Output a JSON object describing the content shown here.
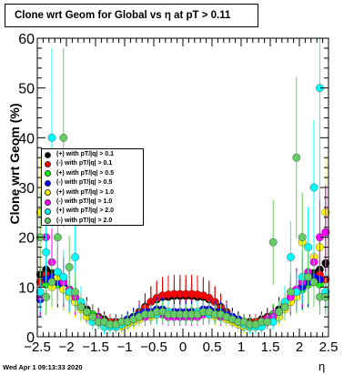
{
  "title": "Clone wrt Geom for Global vs   η at pT > 0.11",
  "footer": "Wed Apr  1 09:13:33 2020",
  "colors": {
    "pos_pt01": "#000000",
    "neg_pt01": "#ff0000",
    "pos_pt05": "#00ff00",
    "neg_pt05": "#0000ff",
    "pos_pt10": "#ffff00",
    "neg_pt10": "#ff00ff",
    "pos_pt20": "#00ffff",
    "neg_pt20": "#66cc66"
  },
  "legend": [
    {
      "label": "(+) with pT/|q| > 0.1",
      "color": "#000000"
    },
    {
      "label": "(-) with pT/|q| > 0.1",
      "color": "#ff0000"
    },
    {
      "label": "(+) with pT/|q| > 0.5",
      "color": "#00ff00"
    },
    {
      "label": "(-) with pT/|q| > 0.5",
      "color": "#0000ff"
    },
    {
      "label": "(+) with pT/|q| > 1.0",
      "color": "#ffff00"
    },
    {
      "label": "(-) with pT/|q| > 1.0",
      "color": "#ff00ff"
    },
    {
      "label": "(+) with pT/|q| > 2.0",
      "color": "#00ffff"
    },
    {
      "label": "(-) with pT/|q| > 2.0",
      "color": "#66cc66"
    }
  ],
  "chart_data": {
    "type": "scatter",
    "title": "Clone wrt Geom for Global vs   η at pT > 0.11",
    "xlabel": "η",
    "ylabel": "Clone wrt Geom (%)",
    "xlim": [
      -2.5,
      2.5
    ],
    "ylim": [
      0,
      60
    ],
    "x_ticks": [
      "−2.5",
      "−2",
      "−1.5",
      "−1",
      "−0.5",
      "0",
      "0.5",
      "1",
      "1.5",
      "2",
      "2.5"
    ],
    "y_ticks": [
      "0",
      "10",
      "20",
      "30",
      "40",
      "50",
      "60"
    ],
    "grid": false,
    "legend_position": "middle-left",
    "series": [
      {
        "name": "(+) with pT/|q| > 0.1",
        "color": "#000000",
        "x": [
          -2.45,
          -2.35,
          -2.25,
          -2.15,
          -2.05,
          -1.95,
          -1.85,
          -1.75,
          -1.65,
          -1.55,
          -1.45,
          -1.35,
          -1.25,
          -1.15,
          -1.05,
          -0.95,
          -0.85,
          -0.75,
          -0.65,
          -0.55,
          -0.45,
          -0.35,
          -0.25,
          -0.15,
          -0.05,
          0.05,
          0.15,
          0.25,
          0.35,
          0.45,
          0.55,
          0.65,
          0.75,
          0.85,
          0.95,
          1.05,
          1.15,
          1.25,
          1.35,
          1.45,
          1.55,
          1.65,
          1.75,
          1.85,
          1.95,
          2.05,
          2.15,
          2.25,
          2.35,
          2.45
        ],
        "y": [
          12.5,
          13.5,
          12.8,
          12.2,
          11.0,
          9.5,
          8.0,
          6.5,
          5.5,
          4.5,
          4.0,
          3.5,
          3.0,
          3.0,
          3.0,
          3.5,
          4.0,
          5.0,
          6.0,
          7.0,
          7.5,
          8.0,
          8.0,
          8.2,
          8.2,
          8.2,
          8.2,
          8.0,
          8.0,
          7.5,
          7.0,
          6.0,
          5.0,
          4.0,
          3.5,
          3.0,
          3.0,
          3.0,
          3.5,
          4.0,
          4.5,
          5.5,
          6.5,
          8.0,
          9.5,
          11.0,
          12.2,
          12.8,
          13.5,
          14.8
        ]
      },
      {
        "name": "(-) with pT/|q| > 0.1",
        "color": "#ff0000",
        "x": [
          -2.45,
          -2.35,
          -2.25,
          -2.15,
          -2.05,
          -1.95,
          -1.85,
          -1.75,
          -1.65,
          -1.55,
          -1.45,
          -1.35,
          -1.25,
          -1.15,
          -1.05,
          -0.95,
          -0.85,
          -0.75,
          -0.65,
          -0.55,
          -0.45,
          -0.35,
          -0.25,
          -0.15,
          -0.05,
          0.05,
          0.15,
          0.25,
          0.35,
          0.45,
          0.55,
          0.65,
          0.75,
          0.85,
          0.95,
          1.05,
          1.15,
          1.25,
          1.35,
          1.45,
          1.55,
          1.65,
          1.75,
          1.85,
          1.95,
          2.05,
          2.15,
          2.25,
          2.35,
          2.45
        ],
        "y": [
          11.0,
          12.5,
          12.0,
          11.5,
          10.5,
          9.0,
          7.5,
          6.0,
          5.0,
          4.5,
          3.8,
          3.2,
          3.0,
          2.8,
          3.0,
          3.2,
          3.8,
          4.8,
          5.8,
          7.0,
          7.8,
          8.3,
          8.5,
          8.6,
          8.6,
          8.6,
          8.6,
          8.5,
          8.3,
          7.8,
          7.0,
          5.8,
          4.8,
          3.8,
          3.2,
          3.0,
          2.8,
          3.0,
          3.2,
          3.8,
          4.5,
          5.0,
          6.0,
          7.5,
          9.0,
          10.5,
          11.5,
          12.0,
          12.5,
          11.5
        ]
      },
      {
        "name": "(+) with pT/|q| > 0.5",
        "color": "#00ff00",
        "x": [
          -2.45,
          -2.35,
          -2.25,
          -2.15,
          -2.05,
          -1.95,
          -1.85,
          -1.75,
          -1.65,
          -1.55,
          -1.45,
          -1.35,
          -1.25,
          -1.15,
          -1.05,
          -0.95,
          -0.85,
          -0.75,
          -0.65,
          -0.55,
          -0.45,
          -0.35,
          -0.25,
          -0.15,
          -0.05,
          0.05,
          0.15,
          0.25,
          0.35,
          0.45,
          0.55,
          0.65,
          0.75,
          0.85,
          0.95,
          1.05,
          1.15,
          1.25,
          1.35,
          1.45,
          1.55,
          1.65,
          1.75,
          1.85,
          1.95,
          2.05,
          2.15,
          2.25,
          2.35,
          2.45
        ],
        "y": [
          8.0,
          10.5,
          11.0,
          10.5,
          9.5,
          8.5,
          7.0,
          6.0,
          5.0,
          4.5,
          3.5,
          3.0,
          2.5,
          2.5,
          3.0,
          3.5,
          3.5,
          4.0,
          4.5,
          5.0,
          5.0,
          5.0,
          5.0,
          5.0,
          4.5,
          4.5,
          5.0,
          5.0,
          5.0,
          5.0,
          5.0,
          4.5,
          4.0,
          3.5,
          3.5,
          3.0,
          2.5,
          2.5,
          3.0,
          3.5,
          4.5,
          5.0,
          6.0,
          7.0,
          8.5,
          9.5,
          10.5,
          11.0,
          10.5,
          9.0
        ]
      },
      {
        "name": "(-) with pT/|q| > 0.5",
        "color": "#0000ff",
        "x": [
          -2.45,
          -2.35,
          -2.25,
          -2.15,
          -2.05,
          -1.95,
          -1.85,
          -1.75,
          -1.65,
          -1.55,
          -1.45,
          -1.35,
          -1.25,
          -1.15,
          -1.05,
          -0.95,
          -0.85,
          -0.75,
          -0.65,
          -0.55,
          -0.45,
          -0.35,
          -0.25,
          -0.15,
          -0.05,
          0.05,
          0.15,
          0.25,
          0.35,
          0.45,
          0.55,
          0.65,
          0.75,
          0.85,
          0.95,
          1.05,
          1.15,
          1.25,
          1.35,
          1.45,
          1.55,
          1.65,
          1.75,
          1.85,
          1.95,
          2.05,
          2.15,
          2.25,
          2.35,
          2.45
        ],
        "y": [
          7.5,
          11.5,
          12.0,
          11.0,
          10.0,
          9.0,
          7.5,
          6.0,
          5.0,
          4.0,
          3.5,
          3.0,
          2.5,
          2.5,
          3.0,
          3.5,
          4.0,
          4.5,
          5.0,
          5.0,
          5.5,
          5.5,
          5.0,
          5.0,
          5.0,
          5.0,
          5.0,
          5.0,
          5.5,
          5.5,
          5.0,
          5.0,
          4.5,
          4.0,
          3.5,
          3.0,
          2.5,
          2.5,
          3.0,
          3.5,
          4.0,
          5.0,
          6.0,
          7.5,
          9.0,
          10.0,
          11.0,
          12.0,
          11.5,
          21.0
        ]
      },
      {
        "name": "(+) with pT/|q| > 1.0",
        "color": "#ffff00",
        "x": [
          -2.45,
          -2.35,
          -2.25,
          -2.15,
          -2.05,
          -1.95,
          -1.85,
          -1.75,
          -1.65,
          -1.55,
          -1.45,
          -1.35,
          -1.25,
          -1.15,
          -1.05,
          -0.95,
          -0.85,
          -0.75,
          -0.65,
          -0.55,
          -0.45,
          -0.35,
          -0.25,
          -0.15,
          -0.05,
          0.05,
          0.15,
          0.25,
          0.35,
          0.45,
          0.55,
          0.65,
          0.75,
          0.85,
          0.95,
          1.05,
          1.15,
          1.25,
          1.35,
          1.45,
          1.55,
          1.65,
          1.75,
          1.85,
          1.95,
          2.05,
          2.15,
          2.25,
          2.35,
          2.45
        ],
        "y": [
          25.0,
          8.0,
          10.0,
          12.0,
          9.5,
          8.0,
          7.0,
          5.5,
          4.0,
          3.5,
          3.0,
          2.5,
          2.5,
          2.0,
          2.0,
          2.5,
          3.0,
          3.5,
          4.0,
          4.0,
          4.5,
          4.5,
          4.0,
          4.0,
          4.0,
          4.0,
          4.0,
          4.0,
          4.5,
          4.5,
          4.0,
          4.0,
          3.5,
          3.0,
          2.5,
          2.0,
          2.0,
          2.5,
          2.5,
          3.0,
          3.5,
          4.0,
          5.5,
          7.0,
          8.0,
          19.0,
          12.0,
          16.0,
          18.0,
          25.0
        ]
      },
      {
        "name": "(-) with pT/|q| > 1.0",
        "color": "#ff00ff",
        "x": [
          -2.45,
          -2.35,
          -2.25,
          -2.15,
          -2.05,
          -1.95,
          -1.85,
          -1.75,
          -1.65,
          -1.55,
          -1.45,
          -1.35,
          -1.25,
          -1.15,
          -1.05,
          -0.95,
          -0.85,
          -0.75,
          -0.65,
          -0.55,
          -0.45,
          -0.35,
          -0.25,
          -0.15,
          -0.05,
          0.05,
          0.15,
          0.25,
          0.35,
          0.45,
          0.55,
          0.65,
          0.75,
          0.85,
          0.95,
          1.05,
          1.15,
          1.25,
          1.35,
          1.45,
          1.55,
          1.65,
          1.75,
          1.85,
          1.95,
          2.05,
          2.15,
          2.25,
          2.35,
          2.45
        ],
        "y": [
          8.0,
          20.0,
          15.0,
          13.0,
          11.0,
          9.5,
          8.0,
          6.0,
          5.0,
          4.0,
          3.5,
          3.0,
          2.5,
          2.5,
          2.5,
          3.0,
          3.5,
          4.0,
          4.0,
          4.5,
          4.5,
          4.5,
          4.0,
          4.0,
          4.0,
          4.0,
          4.0,
          4.0,
          4.5,
          4.5,
          4.5,
          4.0,
          4.0,
          3.5,
          3.0,
          2.5,
          2.5,
          2.5,
          3.0,
          3.5,
          4.0,
          5.0,
          6.0,
          8.0,
          9.5,
          11.0,
          13.0,
          15.0,
          20.0,
          21.0
        ]
      },
      {
        "name": "(+) with pT/|q| > 2.0",
        "color": "#00ffff",
        "x": [
          -2.45,
          -2.35,
          -2.25,
          -2.15,
          -2.05,
          -1.95,
          -1.85,
          -1.75,
          -1.65,
          -1.55,
          -1.45,
          -1.35,
          -1.25,
          -1.15,
          -1.05,
          -0.95,
          -0.85,
          -0.75,
          -0.65,
          -0.55,
          -0.45,
          -0.35,
          -0.25,
          -0.15,
          -0.05,
          0.05,
          0.15,
          0.25,
          0.35,
          0.45,
          0.55,
          0.65,
          0.75,
          0.85,
          0.95,
          1.05,
          1.15,
          1.25,
          1.35,
          1.45,
          1.55,
          1.65,
          1.75,
          1.85,
          1.95,
          2.05,
          2.15,
          2.25,
          2.35,
          2.45
        ],
        "y": [
          9.0,
          17.0,
          40.0,
          13.0,
          12.0,
          9.0,
          16.0,
          7.0,
          5.0,
          3.0,
          3.0,
          2.0,
          2.0,
          2.0,
          2.5,
          3.0,
          3.5,
          4.0,
          4.5,
          4.5,
          4.5,
          5.0,
          5.0,
          4.5,
          4.5,
          4.5,
          4.5,
          5.0,
          5.0,
          4.5,
          4.5,
          4.5,
          4.0,
          3.5,
          3.0,
          2.5,
          2.0,
          2.0,
          2.0,
          3.0,
          3.0,
          5.0,
          7.0,
          16.0,
          9.0,
          12.0,
          18.0,
          30.0,
          50.0,
          9.0
        ]
      },
      {
        "name": "(-) with pT/|q| > 2.0",
        "color": "#66cc66",
        "x": [
          -2.45,
          -2.35,
          -2.25,
          -2.15,
          -2.05,
          -1.95,
          -1.85,
          -1.75,
          -1.65,
          -1.55,
          -1.45,
          -1.35,
          -1.25,
          -1.15,
          -1.05,
          -0.95,
          -0.85,
          -0.75,
          -0.65,
          -0.55,
          -0.45,
          -0.35,
          -0.25,
          -0.15,
          -0.05,
          0.05,
          0.15,
          0.25,
          0.35,
          0.45,
          0.55,
          0.65,
          0.75,
          0.85,
          0.95,
          1.05,
          1.15,
          1.25,
          1.35,
          1.45,
          1.55,
          1.65,
          1.75,
          1.85,
          1.95,
          2.05,
          2.15,
          2.25,
          2.35,
          2.45
        ],
        "y": [
          20.0,
          8.0,
          11.0,
          20.0,
          40.0,
          14.0,
          9.0,
          6.0,
          5.0,
          4.0,
          3.0,
          3.0,
          2.5,
          2.5,
          3.0,
          3.0,
          3.5,
          4.0,
          4.5,
          4.5,
          5.0,
          5.0,
          4.5,
          4.5,
          4.5,
          4.5,
          4.5,
          4.5,
          5.0,
          5.0,
          4.5,
          4.5,
          4.0,
          3.5,
          3.0,
          3.0,
          2.5,
          2.5,
          3.0,
          3.0,
          19.0,
          5.0,
          6.0,
          9.0,
          36.0,
          20.0,
          12.0,
          11.0,
          8.0,
          8.0
        ]
      }
    ]
  }
}
